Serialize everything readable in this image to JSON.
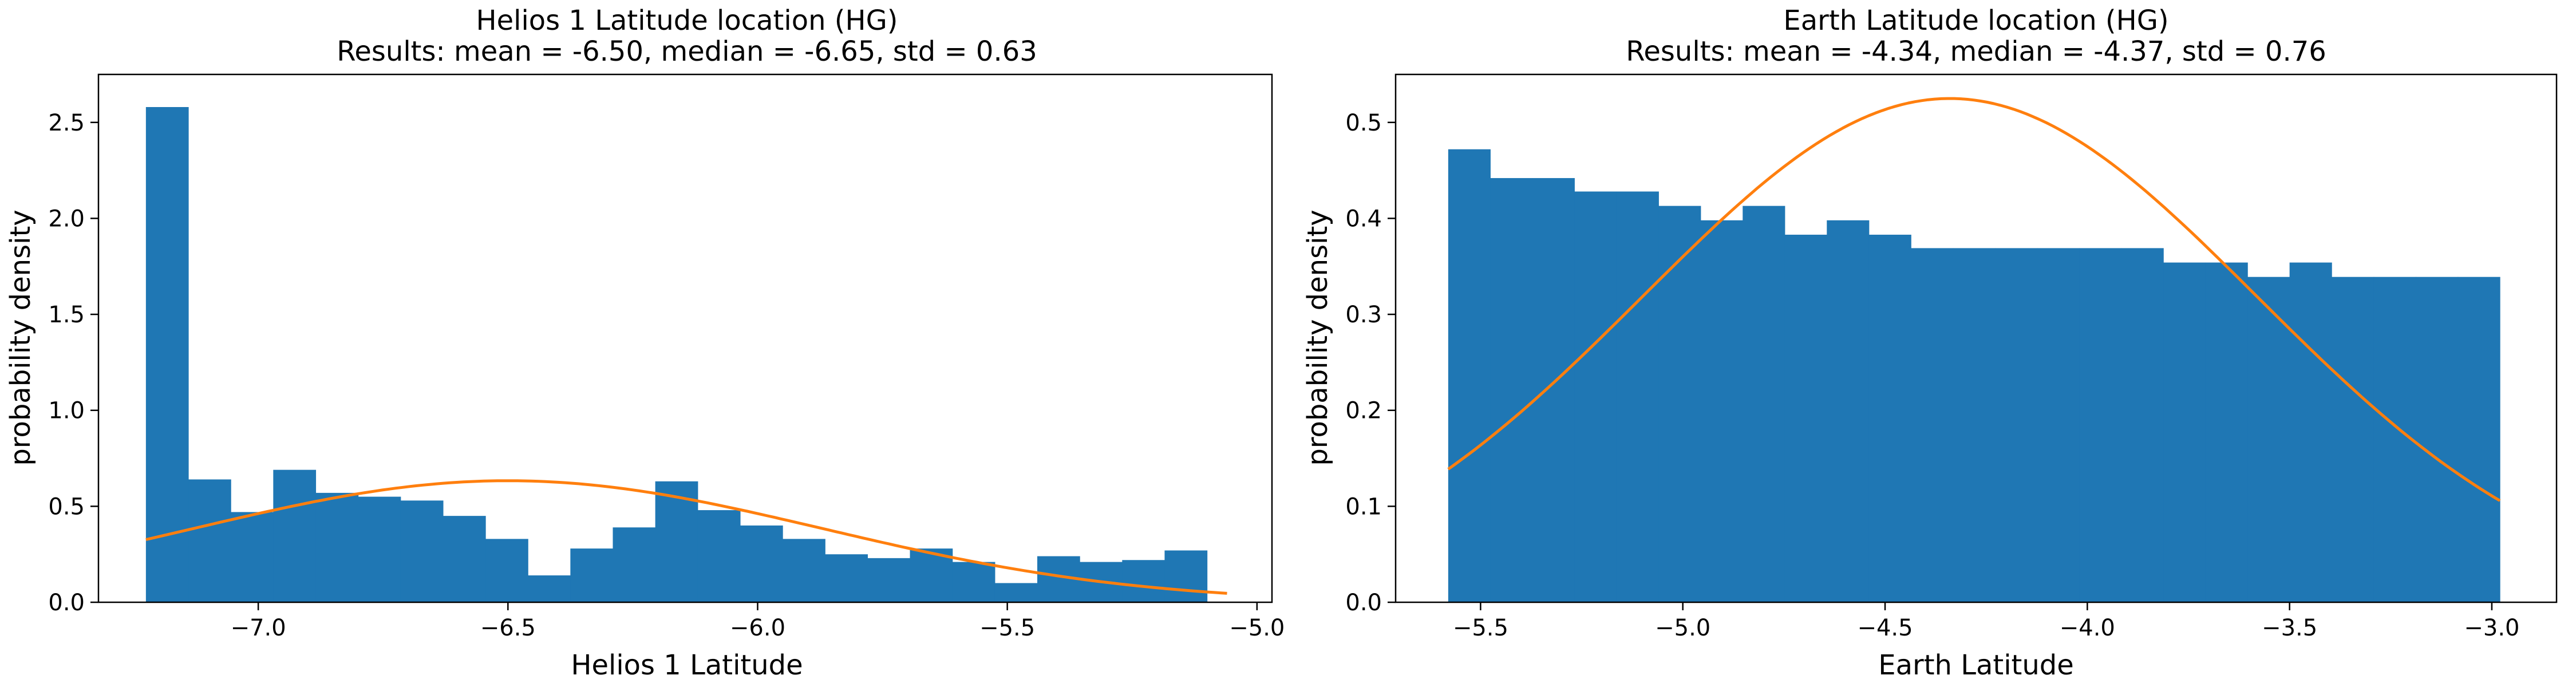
{
  "colors": {
    "bars": "#1f77b4",
    "curve": "#ff7f0e",
    "axes": "#000000",
    "background": "#ffffff"
  },
  "chart_data": [
    {
      "type": "bar",
      "subtype": "histogram with fitted normal curve",
      "title_line1": "Helios 1 Latitude location (HG)",
      "title_line2": "Results: mean = -6.50, median = -6.65, std = 0.63",
      "xlabel": "Helios 1 Latitude",
      "ylabel": "probability density",
      "xlim": [
        -7.32,
        -4.97
      ],
      "ylim": [
        0,
        2.75
      ],
      "xticks": [
        -7.0,
        -6.5,
        -6.0,
        -5.5,
        -5.0
      ],
      "xtick_labels": [
        "−7.0",
        "−6.5",
        "−6.0",
        "−5.5",
        "−5.0"
      ],
      "yticks": [
        0.0,
        0.5,
        1.0,
        1.5,
        2.0,
        2.5
      ],
      "ytick_labels": [
        "0.0",
        "0.5",
        "1.0",
        "1.5",
        "2.0",
        "2.5"
      ],
      "grid": false,
      "bin_edges": [
        -7.225,
        -7.14,
        -7.055,
        -6.97,
        -6.885,
        -6.8,
        -6.715,
        -6.63,
        -6.545,
        -6.46,
        -6.375,
        -6.29,
        -6.205,
        -6.12,
        -6.035,
        -5.95,
        -5.865,
        -5.78,
        -5.695,
        -5.61,
        -5.525,
        -5.44,
        -5.355,
        -5.27,
        -5.185,
        -5.1
      ],
      "values": [
        2.58,
        0.64,
        0.47,
        0.69,
        0.57,
        0.55,
        0.53,
        0.45,
        0.33,
        0.14,
        0.28,
        0.39,
        0.63,
        0.48,
        0.4,
        0.33,
        0.25,
        0.23,
        0.28,
        0.21,
        0.1,
        0.24,
        0.21,
        0.22,
        0.27
      ],
      "fit_curve": {
        "mean": -6.5,
        "std": 0.63,
        "x_range": [
          -7.225,
          -5.06
        ]
      }
    },
    {
      "type": "bar",
      "subtype": "histogram with fitted normal curve",
      "title_line1": "Earth Latitude location (HG)",
      "title_line2": "Results: mean = -4.34, median = -4.37, std = 0.76",
      "xlabel": "Earth Latitude",
      "ylabel": "probability density",
      "xlim": [
        -5.71,
        -2.84
      ],
      "ylim": [
        0,
        0.55
      ],
      "xticks": [
        -5.5,
        -5.0,
        -4.5,
        -4.0,
        -3.5,
        -3.0
      ],
      "xtick_labels": [
        "−5.5",
        "−5.0",
        "−4.5",
        "−4.0",
        "−3.5",
        "−3.0"
      ],
      "yticks": [
        0.0,
        0.1,
        0.2,
        0.3,
        0.4,
        0.5
      ],
      "ytick_labels": [
        "0.0",
        "0.1",
        "0.2",
        "0.3",
        "0.4",
        "0.5"
      ],
      "grid": false,
      "bin_edges": [
        -5.58,
        -5.476,
        -5.372,
        -5.268,
        -5.164,
        -5.06,
        -4.956,
        -4.852,
        -4.748,
        -4.644,
        -4.54,
        -4.436,
        -4.332,
        -4.228,
        -4.124,
        -4.02,
        -3.916,
        -3.812,
        -3.708,
        -3.604,
        -3.5,
        -3.396,
        -3.292,
        -3.188,
        -3.084,
        -2.98
      ],
      "values": [
        0.472,
        0.442,
        0.442,
        0.428,
        0.428,
        0.413,
        0.398,
        0.413,
        0.383,
        0.398,
        0.383,
        0.369,
        0.369,
        0.369,
        0.369,
        0.369,
        0.369,
        0.354,
        0.354,
        0.339,
        0.354,
        0.339,
        0.339,
        0.339,
        0.339
      ],
      "fit_curve": {
        "mean": -4.34,
        "std": 0.76,
        "x_range": [
          -5.58,
          -2.98
        ]
      }
    }
  ]
}
